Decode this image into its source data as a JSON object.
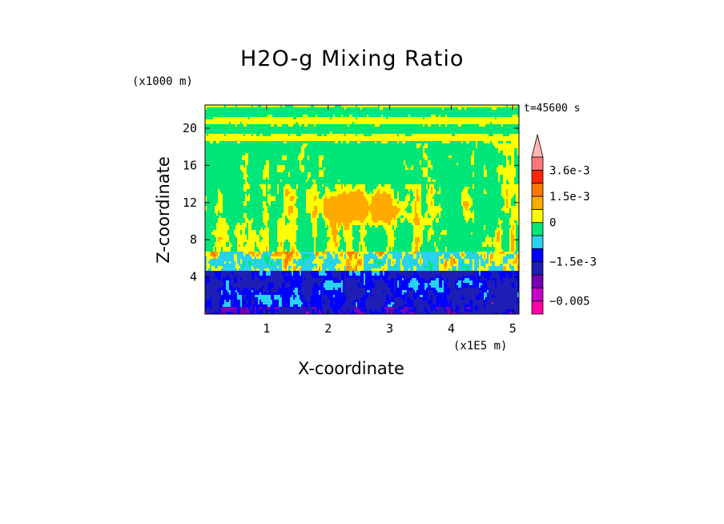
{
  "chart_data": {
    "type": "heatmap",
    "title": "H2O-g Mixing Ratio",
    "xlabel": "X-coordinate",
    "ylabel": "Z-coordinate",
    "x_unit": "(x1E5 m)",
    "y_unit": "(x1000 m)",
    "timestamp": "t=45600 s",
    "xlim": [
      0,
      5.1
    ],
    "ylim": [
      0,
      22.5
    ],
    "x_ticks": [
      1,
      2,
      3,
      4,
      5
    ],
    "y_ticks": [
      4,
      8,
      12,
      16,
      20
    ],
    "colorbar": {
      "levels": [
        {
          "color": "#ff00a8"
        },
        {
          "color": "#c800c8"
        },
        {
          "color": "#7800b4"
        },
        {
          "color": "#1e1eb4"
        },
        {
          "color": "#0000ff"
        },
        {
          "color": "#28d2f0"
        },
        {
          "color": "#00e678"
        },
        {
          "color": "#ffff00"
        },
        {
          "color": "#ffaa00"
        },
        {
          "color": "#ff7800"
        },
        {
          "color": "#ff2800"
        },
        {
          "color": "#ff7878"
        },
        {
          "color": "#ffb4b4"
        }
      ],
      "labels": [
        {
          "text": "3.6e-3",
          "level": 11
        },
        {
          "text": "1.5e-3",
          "level": 9
        },
        {
          "text": "0",
          "level": 7
        },
        {
          "text": "−1.5e-3",
          "level": 4
        },
        {
          "text": "−0.005",
          "level": 1
        }
      ]
    }
  }
}
